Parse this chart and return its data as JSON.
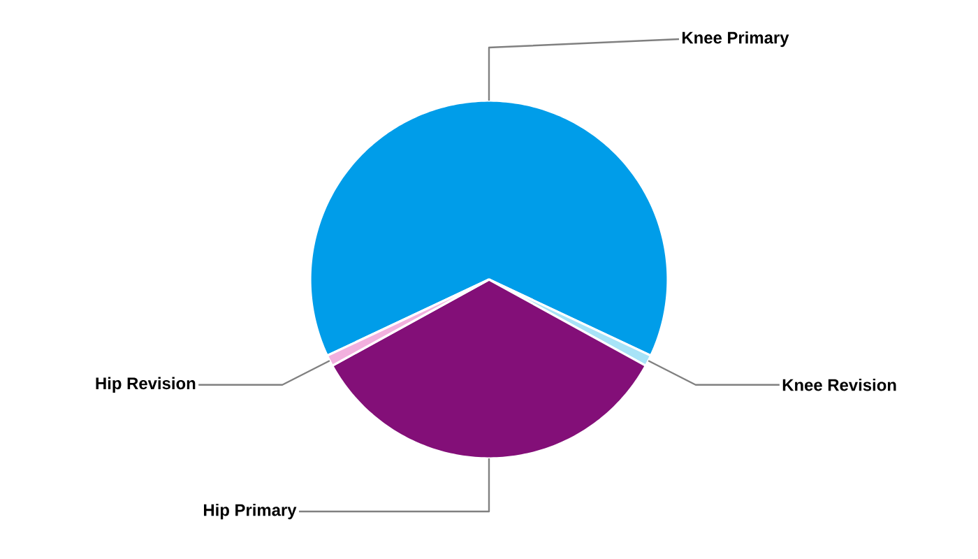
{
  "chart_data": {
    "type": "pie",
    "categories": [
      "Knee Primary",
      "Knee Revision",
      "Hip Primary",
      "Hip Revision"
    ],
    "values": [
      64,
      1,
      34,
      1
    ],
    "colors": [
      "#009de9",
      "#a7e3f7",
      "#830f78",
      "#f2b0de"
    ]
  }
}
